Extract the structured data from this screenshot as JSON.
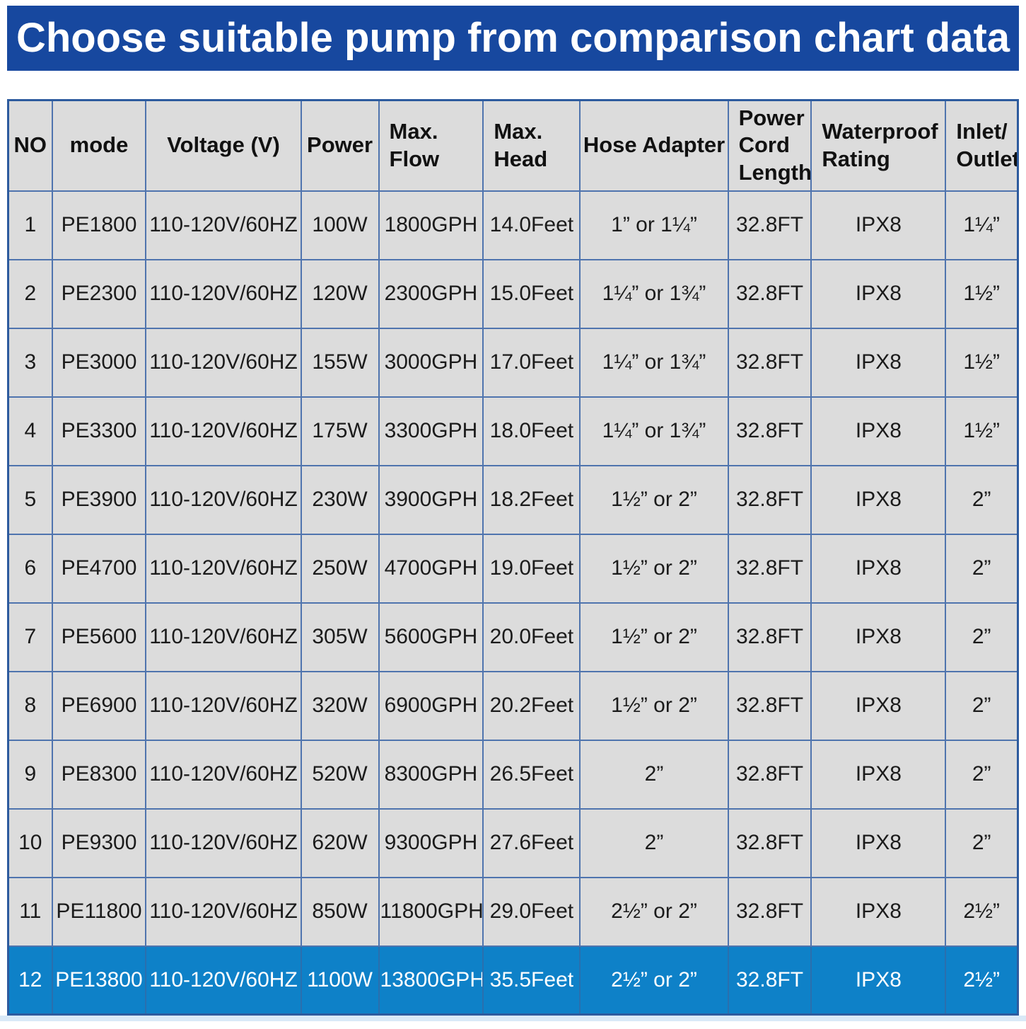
{
  "banner": {
    "title": "Choose suitable pump from comparison chart data"
  },
  "colors": {
    "banner_bg": "#17489f",
    "cell_bg": "#dcdcdc",
    "grid_line": "#4f74ae",
    "outer_border": "#2d5b9e",
    "highlight_bg": "#0e81c8",
    "highlight_text": "#ffffff",
    "bottom_strip": "#d9e9f7"
  },
  "table": {
    "column_labels": [
      "NO",
      "mode",
      "Voltage (V)",
      "Power",
      "Max.\nFlow",
      "Max.\nHead",
      "Hose Adapter",
      "Power\nCord\nLength",
      "Waterproof\nRating",
      "Inlet/\nOutlet"
    ]
  },
  "chart_data": {
    "type": "table",
    "title": "Choose suitable pump from comparison chart data",
    "columns": [
      "NO",
      "mode",
      "Voltage (V)",
      "Power",
      "Max. Flow",
      "Max. Head",
      "Hose Adapter",
      "Power Cord Length",
      "Waterproof Rating",
      "Inlet/Outlet"
    ],
    "rows": [
      [
        "1",
        "PE1800",
        "110-120V/60HZ",
        "100W",
        "1800GPH",
        "14.0Feet",
        "1” or 1¼”",
        "32.8FT",
        "IPX8",
        "1¼”"
      ],
      [
        "2",
        "PE2300",
        "110-120V/60HZ",
        "120W",
        "2300GPH",
        "15.0Feet",
        "1¼” or 1¾”",
        "32.8FT",
        "IPX8",
        "1½”"
      ],
      [
        "3",
        "PE3000",
        "110-120V/60HZ",
        "155W",
        "3000GPH",
        "17.0Feet",
        "1¼” or 1¾”",
        "32.8FT",
        "IPX8",
        "1½”"
      ],
      [
        "4",
        "PE3300",
        "110-120V/60HZ",
        "175W",
        "3300GPH",
        "18.0Feet",
        "1¼” or 1¾”",
        "32.8FT",
        "IPX8",
        "1½”"
      ],
      [
        "5",
        "PE3900",
        "110-120V/60HZ",
        "230W",
        "3900GPH",
        "18.2Feet",
        "1½” or 2”",
        "32.8FT",
        "IPX8",
        "2”"
      ],
      [
        "6",
        "PE4700",
        "110-120V/60HZ",
        "250W",
        "4700GPH",
        "19.0Feet",
        "1½” or 2”",
        "32.8FT",
        "IPX8",
        "2”"
      ],
      [
        "7",
        "PE5600",
        "110-120V/60HZ",
        "305W",
        "5600GPH",
        "20.0Feet",
        "1½” or 2”",
        "32.8FT",
        "IPX8",
        "2”"
      ],
      [
        "8",
        "PE6900",
        "110-120V/60HZ",
        "320W",
        "6900GPH",
        "20.2Feet",
        "1½” or 2”",
        "32.8FT",
        "IPX8",
        "2”"
      ],
      [
        "9",
        "PE8300",
        "110-120V/60HZ",
        "520W",
        "8300GPH",
        "26.5Feet",
        "2”",
        "32.8FT",
        "IPX8",
        "2”"
      ],
      [
        "10",
        "PE9300",
        "110-120V/60HZ",
        "620W",
        "9300GPH",
        "27.6Feet",
        "2”",
        "32.8FT",
        "IPX8",
        "2”"
      ],
      [
        "11",
        "PE11800",
        "110-120V/60HZ",
        "850W",
        "11800GPH",
        "29.0Feet",
        "2½” or 2”",
        "32.8FT",
        "IPX8",
        "2½”"
      ],
      [
        "12",
        "PE13800",
        "110-120V/60HZ",
        "1100W",
        "13800GPH",
        "35.5Feet",
        "2½” or 2”",
        "32.8FT",
        "IPX8",
        "2½”"
      ]
    ],
    "highlighted_row": 12,
    "grid": true,
    "legend_position": "none"
  }
}
